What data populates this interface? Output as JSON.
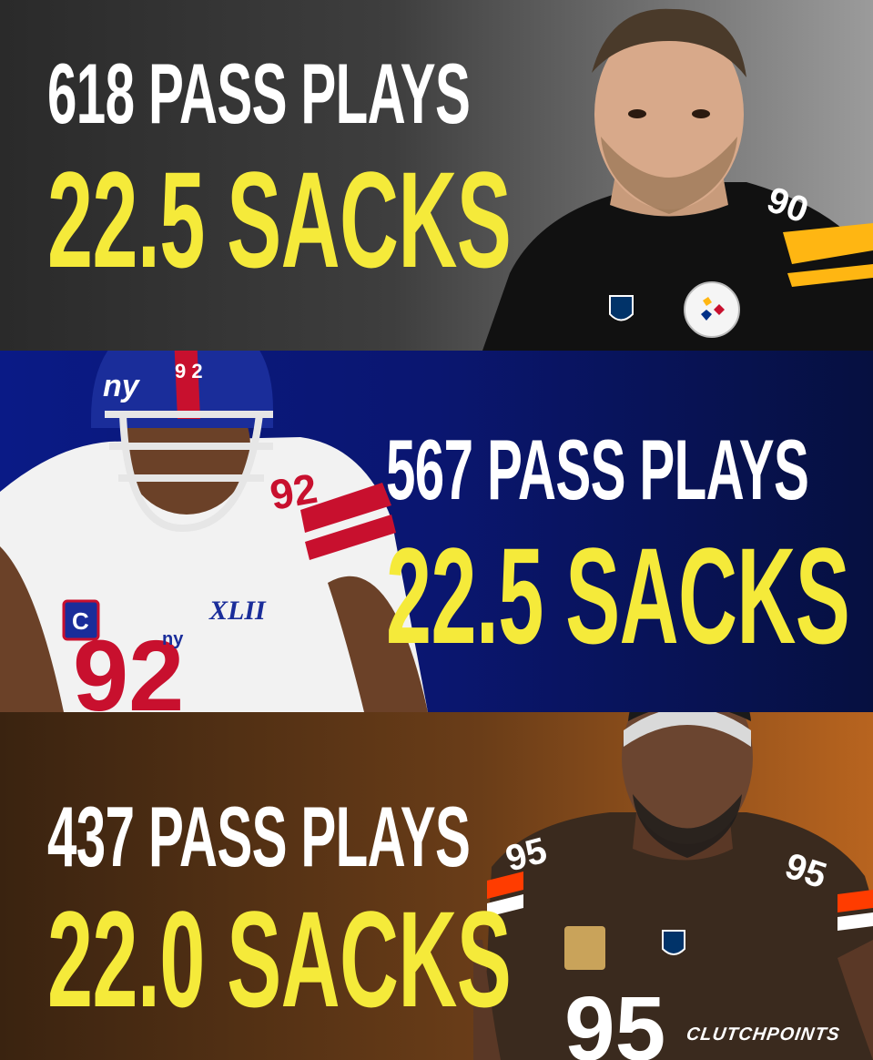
{
  "players": [
    {
      "pass_plays": "618 PASS PLAYS",
      "sacks": "22.5 SACKS",
      "jersey_number": "90",
      "team_badge": "Steelers",
      "colors": {
        "background": "#3a3a3a",
        "jersey": "#111111",
        "accent": "#ffb612"
      }
    },
    {
      "pass_plays": "567 PASS PLAYS",
      "sacks": "22.5 SACKS",
      "jersey_number": "92",
      "helmet_text": "ny",
      "patch_text": "XLII",
      "captain_patch": "C",
      "colors": {
        "background": "#0a1a7a",
        "jersey": "#f2f2f2",
        "accent": "#c8102e"
      }
    },
    {
      "pass_plays": "437 PASS PLAYS",
      "sacks": "22.0 SACKS",
      "jersey_number": "95",
      "colors": {
        "background": "#6a3d18",
        "jersey": "#3a2a1e",
        "accent": "#ff3c00"
      }
    }
  ],
  "branding": {
    "logo": "CLUTCHPOINTS"
  },
  "colors": {
    "stat_white": "#ffffff",
    "stat_yellow": "#f5ea3a"
  }
}
